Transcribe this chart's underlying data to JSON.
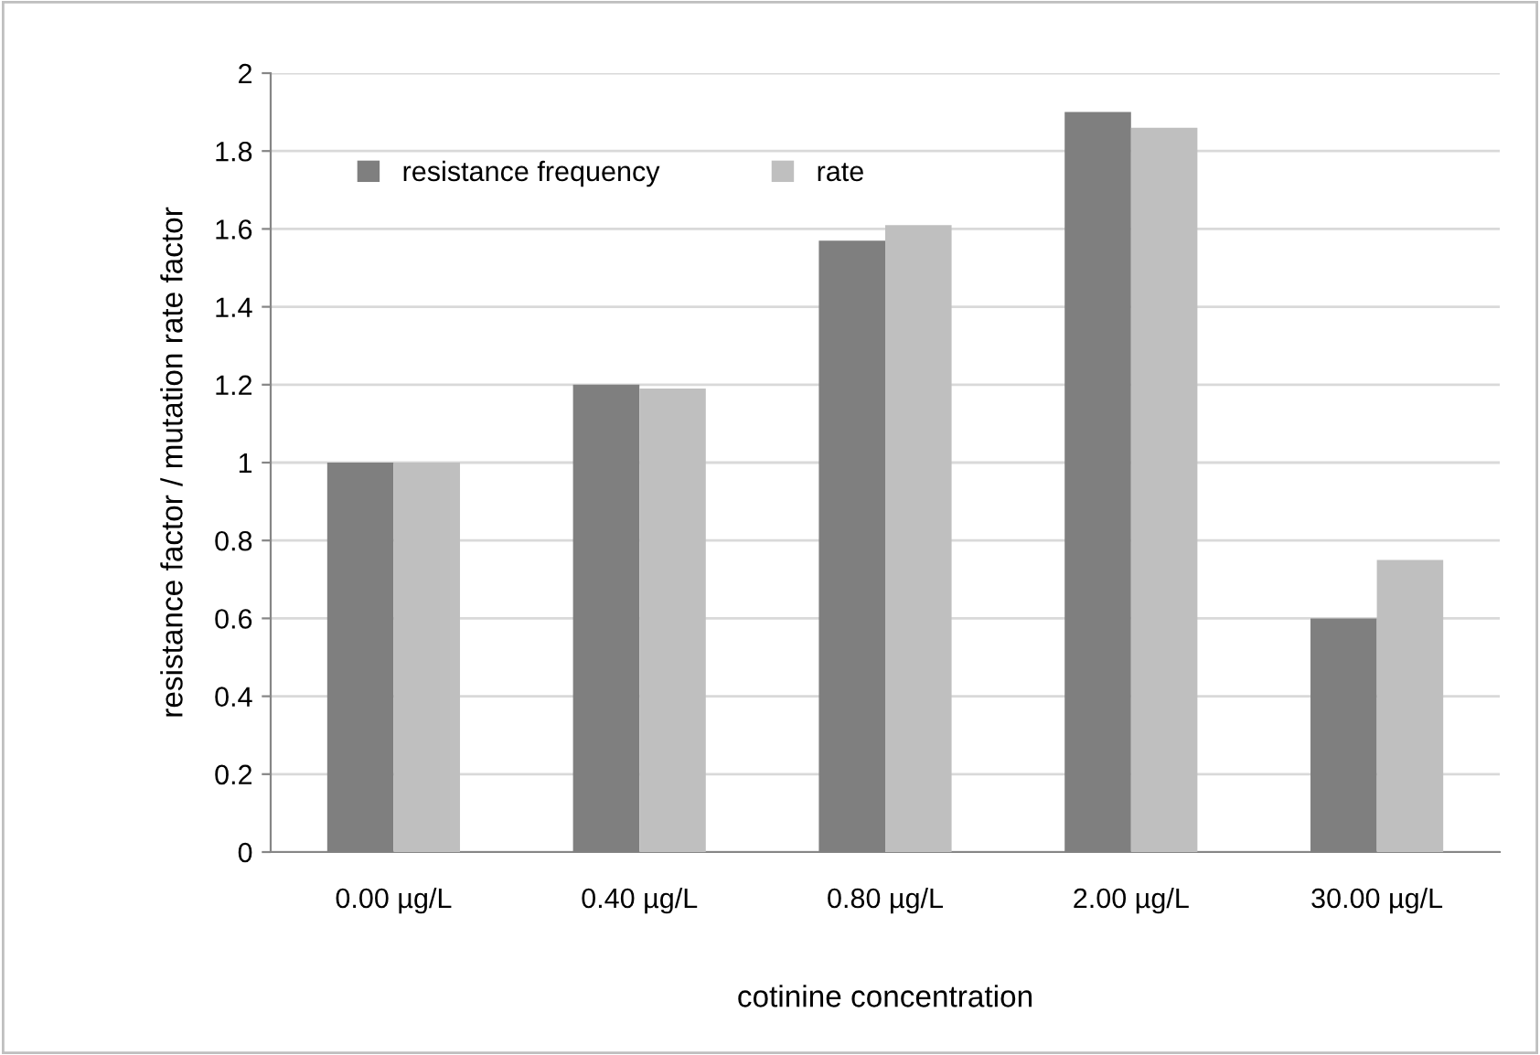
{
  "chart_data": {
    "type": "bar",
    "xlabel": "cotinine concentration",
    "ylabel": "resistance factor / mutation rate factor",
    "categories": [
      "0.00 µg/L",
      "0.40 µg/L",
      "0.80 µg/L",
      "2.00 µg/L",
      "30.00 µg/L"
    ],
    "series": [
      {
        "name": "resistance frequency",
        "color": "#7f7f7f",
        "values": [
          1.0,
          1.2,
          1.57,
          1.9,
          0.6
        ]
      },
      {
        "name": "rate",
        "color": "#bfbfbf",
        "values": [
          1.0,
          1.19,
          1.61,
          1.86,
          0.75
        ]
      }
    ],
    "ylim": [
      0,
      2
    ],
    "yticks": [
      0,
      0.2,
      0.4,
      0.6,
      0.8,
      1,
      1.2,
      1.4,
      1.6,
      1.8,
      2
    ],
    "grid": "y",
    "legend": "top left"
  }
}
